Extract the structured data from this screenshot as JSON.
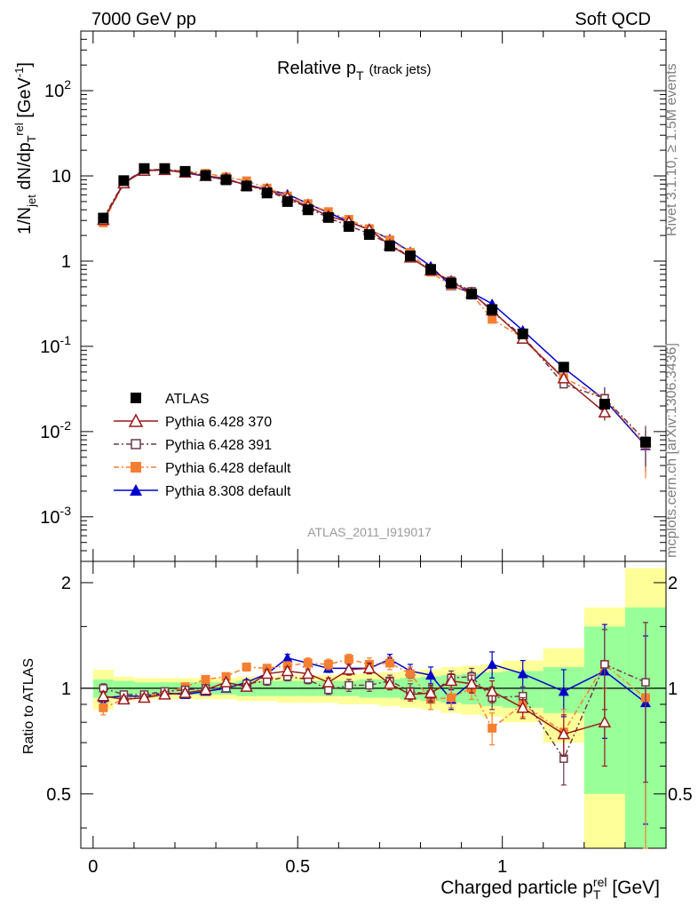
{
  "header": {
    "left": "7000 GeV pp",
    "right": "Soft QCD"
  },
  "side": {
    "rivet": "Rivet 3.1.10, ≥ 1.5M events",
    "mcplots": "mcplots.cern.ch [arXiv:1306.3436]"
  },
  "chart_data": {
    "type": "scatter",
    "title_main": "Relative p",
    "title_sub": "T",
    "title_paren": "(track jets)",
    "ylabel": {
      "a": "1/N",
      "b": "jet",
      "c": " dN/dp",
      "d": "T",
      "e": "rel",
      "f": " [GeV",
      "g": "-1",
      "h": "]"
    },
    "xlabel": {
      "a": "Charged particle p",
      "b": "T",
      "c": "rel",
      "d": " [GeV]"
    },
    "ratio_ylabel": "Ratio to ATLAS",
    "watermark": "ATLAS_2011_I919017",
    "x_ticks": [
      "0",
      "0.5",
      "1"
    ],
    "main_y_ticks": [
      {
        "base": "10",
        "exp": "-3"
      },
      {
        "base": "10",
        "exp": "-2"
      },
      {
        "base": "10",
        "exp": "-1"
      },
      {
        "base": "1",
        "exp": ""
      },
      {
        "base": "10",
        "exp": ""
      },
      {
        "base": "10",
        "exp": "2"
      }
    ],
    "ratio_y_ticks": [
      "0.5",
      "1",
      "2"
    ],
    "xlim": [
      -0.03,
      1.4
    ],
    "main_ylim": [
      0.0003,
      500
    ],
    "main_yscale": "log",
    "ratio_ylim": [
      0.35,
      2.3
    ],
    "ratio_yscale": "log",
    "legend_position": "lower-left",
    "bins": [
      [
        0,
        0.05
      ],
      [
        0.05,
        0.1
      ],
      [
        0.1,
        0.15
      ],
      [
        0.15,
        0.2
      ],
      [
        0.2,
        0.25
      ],
      [
        0.25,
        0.3
      ],
      [
        0.3,
        0.35
      ],
      [
        0.35,
        0.4
      ],
      [
        0.4,
        0.45
      ],
      [
        0.45,
        0.5
      ],
      [
        0.5,
        0.55
      ],
      [
        0.55,
        0.6
      ],
      [
        0.6,
        0.65
      ],
      [
        0.65,
        0.7
      ],
      [
        0.7,
        0.75
      ],
      [
        0.75,
        0.8
      ],
      [
        0.8,
        0.85
      ],
      [
        0.85,
        0.9
      ],
      [
        0.9,
        0.95
      ],
      [
        0.95,
        1.0
      ],
      [
        1.0,
        1.1
      ],
      [
        1.1,
        1.2
      ],
      [
        1.2,
        1.3
      ],
      [
        1.3,
        1.4
      ]
    ],
    "x": [
      0.025,
      0.075,
      0.125,
      0.175,
      0.225,
      0.275,
      0.325,
      0.375,
      0.425,
      0.475,
      0.525,
      0.575,
      0.625,
      0.675,
      0.725,
      0.775,
      0.825,
      0.875,
      0.925,
      0.975,
      1.05,
      1.15,
      1.25,
      1.35
    ],
    "band_stat": [
      0.06,
      0.05,
      0.04,
      0.04,
      0.04,
      0.04,
      0.04,
      0.05,
      0.05,
      0.05,
      0.05,
      0.05,
      0.05,
      0.06,
      0.06,
      0.07,
      0.08,
      0.09,
      0.1,
      0.11,
      0.12,
      0.15,
      0.5,
      0.7
    ],
    "band_total": [
      0.13,
      0.08,
      0.07,
      0.07,
      0.07,
      0.07,
      0.07,
      0.08,
      0.08,
      0.09,
      0.09,
      0.09,
      0.1,
      0.1,
      0.11,
      0.12,
      0.13,
      0.15,
      0.16,
      0.17,
      0.2,
      0.3,
      0.7,
      1.2
    ],
    "series": [
      {
        "name": "ATLAS",
        "color": "#000000",
        "marker": "square-filled",
        "dash": "",
        "values": [
          3.2,
          8.8,
          12.2,
          12.2,
          11.3,
          10.1,
          9.0,
          7.6,
          6.3,
          5.0,
          4.0,
          3.25,
          2.55,
          2.05,
          1.5,
          1.15,
          0.8,
          0.55,
          0.41,
          0.27,
          0.14,
          0.057,
          0.021,
          0.0075
        ],
        "err": [
          0.05,
          0.05,
          0.04,
          0.04,
          0.04,
          0.04,
          0.04,
          0.05,
          0.05,
          0.05,
          0.05,
          0.05,
          0.05,
          0.06,
          0.06,
          0.07,
          0.08,
          0.09,
          0.1,
          0.11,
          0.12,
          0.15,
          0.5,
          0.7
        ]
      },
      {
        "name": "Pythia 6.428 370",
        "color": "#991a1a",
        "marker": "triangle-open",
        "dash": "",
        "ratio": [
          0.95,
          0.93,
          0.94,
          0.96,
          0.97,
          0.99,
          1.04,
          1.01,
          1.1,
          1.12,
          1.1,
          1.04,
          1.13,
          1.14,
          1.03,
          0.96,
          0.97,
          1.05,
          1.03,
          0.98,
          0.88,
          0.74,
          0.8,
          null
        ],
        "rerr": [
          0.03,
          0.02,
          0.02,
          0.02,
          0.02,
          0.02,
          0.02,
          0.02,
          0.03,
          0.03,
          0.03,
          0.03,
          0.04,
          0.04,
          0.04,
          0.04,
          0.05,
          0.05,
          0.06,
          0.07,
          0.06,
          0.1,
          0.2,
          null
        ]
      },
      {
        "name": "Pythia 6.428 391",
        "color": "#6b3a4a",
        "marker": "square-open",
        "dash": "6,3,2,3",
        "ratio": [
          1.0,
          0.96,
          0.96,
          0.98,
          0.99,
          1.0,
          1.0,
          1.03,
          1.05,
          1.08,
          1.06,
          0.99,
          1.02,
          1.02,
          1.05,
          0.98,
          0.96,
          1.07,
          1.08,
          0.94,
          0.95,
          0.63,
          1.17,
          1.04
        ],
        "rerr": [
          0.03,
          0.02,
          0.02,
          0.02,
          0.02,
          0.02,
          0.02,
          0.02,
          0.03,
          0.03,
          0.03,
          0.03,
          0.04,
          0.04,
          0.04,
          0.05,
          0.05,
          0.05,
          0.06,
          0.07,
          0.06,
          0.1,
          0.3,
          0.5
        ]
      },
      {
        "name": "Pythia 6.428 default",
        "color": "#f57f31",
        "marker": "square-filled",
        "dash": "6,3,2,3",
        "ratio": [
          0.88,
          0.93,
          0.95,
          0.97,
          1.01,
          1.06,
          1.08,
          1.15,
          1.14,
          1.16,
          1.18,
          1.17,
          1.21,
          1.17,
          1.18,
          1.1,
          0.93,
          0.94,
          1.0,
          0.77,
          0.9,
          0.75,
          1.17,
          0.94
        ],
        "rerr": [
          0.04,
          0.02,
          0.02,
          0.02,
          0.02,
          0.02,
          0.02,
          0.03,
          0.03,
          0.03,
          0.04,
          0.04,
          0.04,
          0.05,
          0.05,
          0.05,
          0.06,
          0.06,
          0.07,
          0.08,
          0.07,
          0.12,
          0.3,
          0.6
        ]
      },
      {
        "name": "Pythia 8.308 default",
        "color": "#0000cc",
        "marker": "triangle-filled",
        "dash": "",
        "ratio": [
          0.94,
          0.95,
          0.95,
          0.97,
          0.96,
          0.98,
          1.0,
          1.04,
          1.1,
          1.22,
          1.18,
          1.14,
          1.14,
          1.14,
          1.21,
          1.12,
          1.09,
          0.93,
          1.04,
          1.17,
          1.1,
          0.98,
          1.12,
          0.91
        ],
        "rerr": [
          0.03,
          0.02,
          0.02,
          0.02,
          0.02,
          0.02,
          0.02,
          0.02,
          0.03,
          0.03,
          0.03,
          0.03,
          0.04,
          0.04,
          0.04,
          0.05,
          0.06,
          0.06,
          0.07,
          0.1,
          0.1,
          0.15,
          0.4,
          0.5
        ]
      }
    ]
  }
}
